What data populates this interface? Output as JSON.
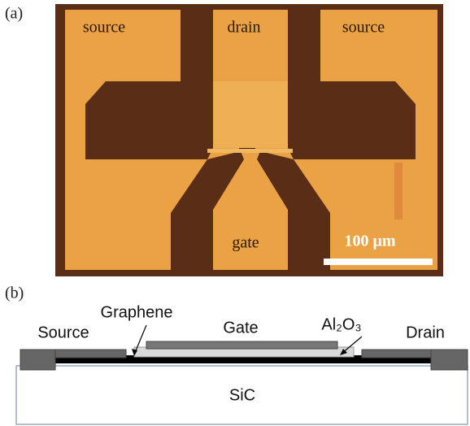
{
  "panel_a": {
    "label": "(a)",
    "pads": {
      "source_left": "source",
      "drain": "drain",
      "source_right": "source",
      "gate": "gate"
    },
    "scale_bar": "100 μm"
  },
  "panel_b": {
    "label": "(b)",
    "labels": {
      "source": "Source",
      "graphene": "Graphene",
      "gate": "Gate",
      "oxide": "Al₂O₃",
      "drain": "Drain",
      "substrate": "SiC"
    }
  }
}
